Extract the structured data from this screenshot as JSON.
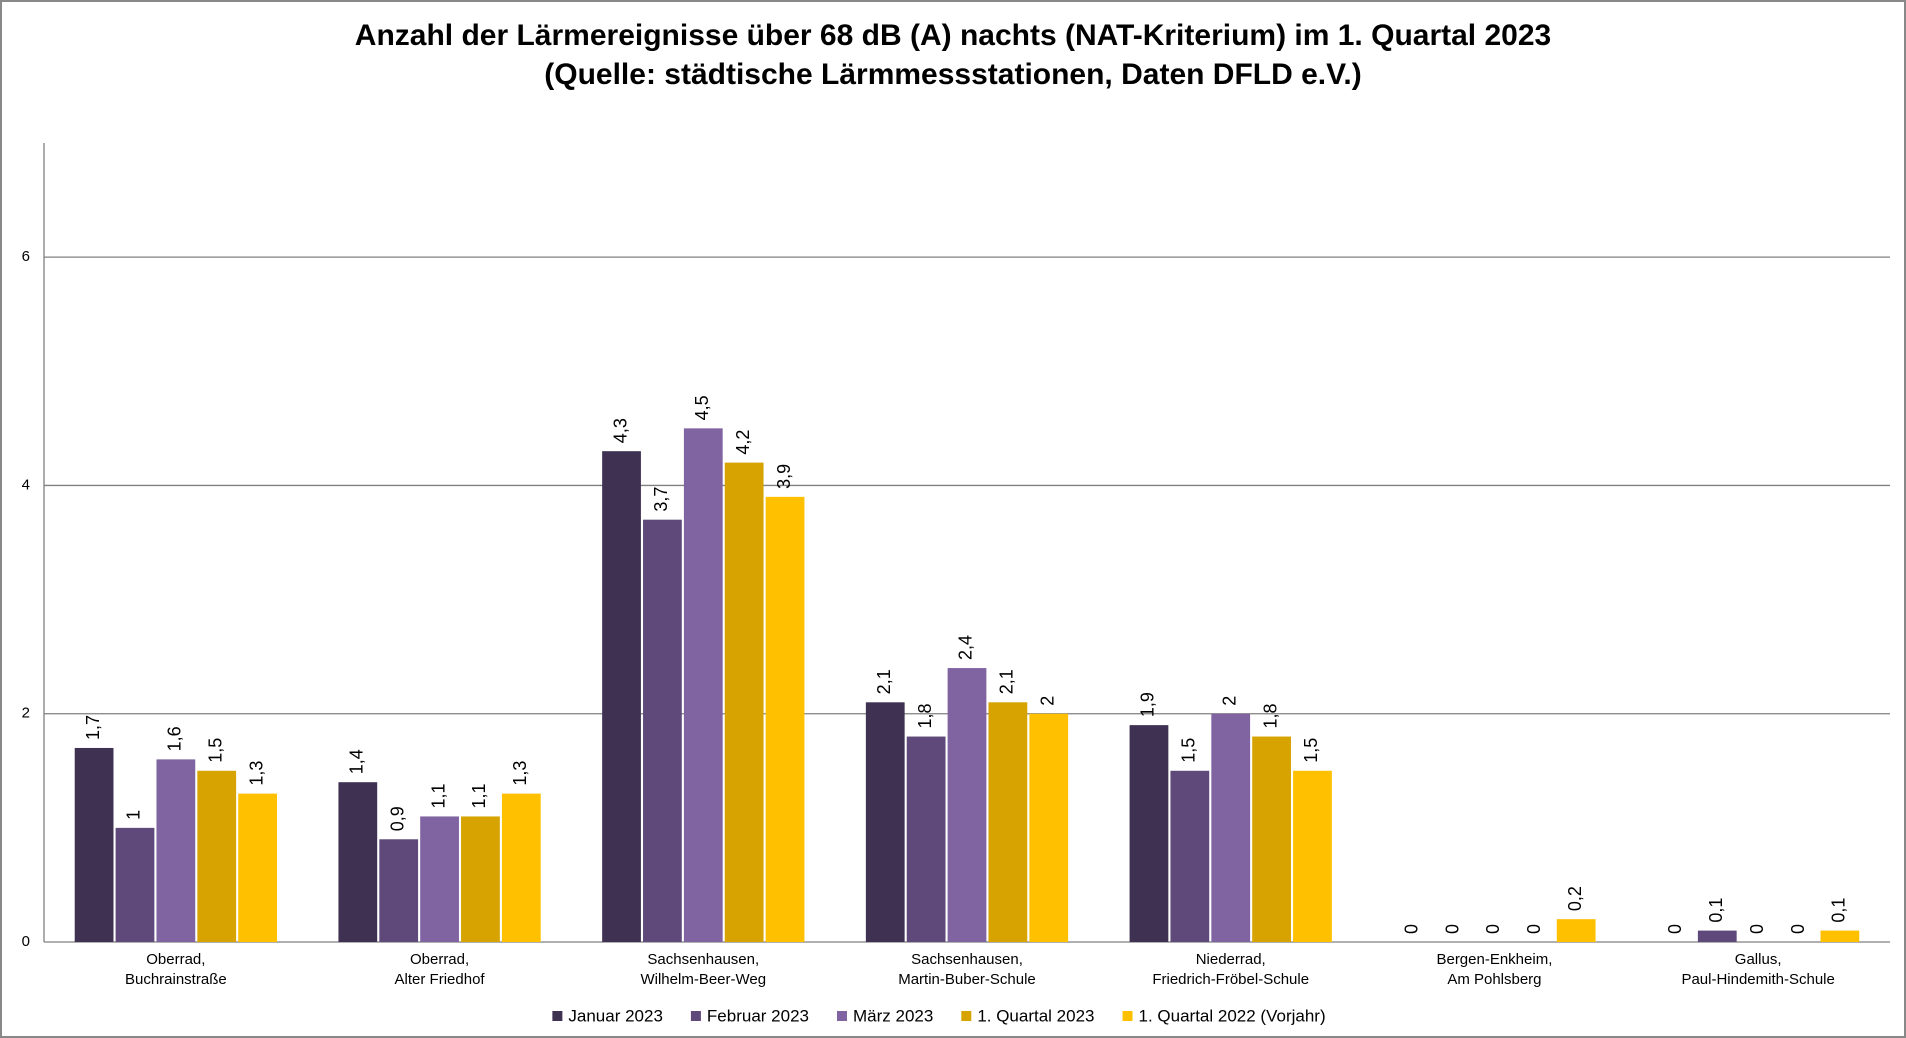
{
  "chart_data": {
    "type": "bar",
    "title": "Anzahl der Lärmereignisse über 68 dB (A) nachts (NAT-Kriterium) im 1. Quartal 2023",
    "subtitle": "(Quelle: städtische Lärmmessstationen, Daten DFLD e.V.)",
    "categories": [
      [
        "Oberrad,",
        "Buchrainstraße"
      ],
      [
        "Oberrad,",
        "Alter Friedhof"
      ],
      [
        "Sachsenhausen,",
        "Wilhelm-Beer-Weg"
      ],
      [
        "Sachsenhausen,",
        "Martin-Buber-Schule"
      ],
      [
        "Niederrad,",
        "Friedrich-Fröbel-Schule"
      ],
      [
        "Bergen-Enkheim,",
        "Am Pohlsberg"
      ],
      [
        "Gallus,",
        "Paul-Hindemith-Schule"
      ]
    ],
    "series": [
      {
        "name": "Januar 2023",
        "color": "#3f3151",
        "values": [
          1.7,
          1.4,
          4.3,
          2.1,
          1.9,
          0,
          0
        ],
        "value_labels": [
          "1,7",
          "1,4",
          "4,3",
          "2,1",
          "1,9",
          "0",
          "0"
        ]
      },
      {
        "name": "Februar 2023",
        "color": "#5f497a",
        "values": [
          1,
          0.9,
          3.7,
          1.8,
          1.5,
          0,
          0.1
        ],
        "value_labels": [
          "1",
          "0,9",
          "3,7",
          "1,8",
          "1,5",
          "0",
          "0,1"
        ]
      },
      {
        "name": "März 2023",
        "color": "#8064a2",
        "values": [
          1.6,
          1.1,
          4.5,
          2.4,
          2,
          0,
          0
        ],
        "value_labels": [
          "1,6",
          "1,1",
          "4,5",
          "2,4",
          "2",
          "0",
          "0"
        ]
      },
      {
        "name": "1. Quartal 2023",
        "color": "#d6a300",
        "values": [
          1.5,
          1.1,
          4.2,
          2.1,
          1.8,
          0,
          0
        ],
        "value_labels": [
          "1,5",
          "1,1",
          "4,2",
          "2,1",
          "1,8",
          "0",
          "0"
        ]
      },
      {
        "name": "1. Quartal 2022 (Vorjahr)",
        "color": "#ffc000",
        "values": [
          1.3,
          1.3,
          3.9,
          2,
          1.5,
          0.2,
          0.1
        ],
        "value_labels": [
          "1,3",
          "1,3",
          "3,9",
          "2",
          "1,5",
          "0,2",
          "0,1"
        ]
      }
    ],
    "ylim": [
      0,
      7
    ],
    "yticks": [
      0,
      2,
      4,
      6
    ],
    "grid": true
  }
}
